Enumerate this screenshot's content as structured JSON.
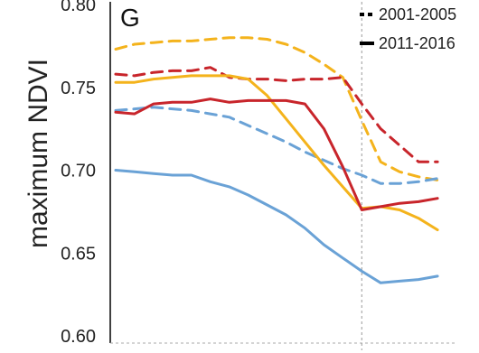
{
  "chart_data": {
    "type": "line",
    "panel_label": "G",
    "ylabel": "maximum NDVI",
    "xlabel": "",
    "ylim": [
      0.6,
      0.8
    ],
    "yticks": [
      "0.60",
      "0.65",
      "0.70",
      "0.75",
      "0.80"
    ],
    "ytick_values": [
      0.6,
      0.65,
      0.7,
      0.75,
      0.8
    ],
    "xlim": [
      0,
      18
    ],
    "vertical_marker_x": 13,
    "grid": false,
    "legend_position": "top-right",
    "legend": [
      {
        "label": "2001-2005",
        "style": "dashed"
      },
      {
        "label": "2011-2016",
        "style": "solid"
      }
    ],
    "x": [
      0,
      1,
      2,
      3,
      4,
      5,
      6,
      7,
      8,
      9,
      10,
      11,
      12,
      13,
      14,
      15,
      16,
      17
    ],
    "series": [
      {
        "color": "#f4b31c",
        "style": "dashed",
        "values": [
          0.773,
          0.776,
          0.777,
          0.778,
          0.778,
          0.779,
          0.78,
          0.78,
          0.779,
          0.776,
          0.771,
          0.764,
          0.756,
          0.73,
          0.705,
          0.699,
          0.696,
          0.694
        ]
      },
      {
        "color": "#c8252b",
        "style": "dashed",
        "values": [
          0.758,
          0.757,
          0.759,
          0.76,
          0.76,
          0.762,
          0.756,
          0.755,
          0.755,
          0.754,
          0.755,
          0.755,
          0.756,
          0.74,
          0.725,
          0.715,
          0.705,
          0.705
        ]
      },
      {
        "color": "#6aa2d6",
        "style": "dashed",
        "values": [
          0.736,
          0.737,
          0.738,
          0.737,
          0.736,
          0.734,
          0.732,
          0.727,
          0.722,
          0.717,
          0.711,
          0.706,
          0.701,
          0.697,
          0.692,
          0.692,
          0.693,
          0.695
        ]
      },
      {
        "color": "#f4b31c",
        "style": "solid",
        "values": [
          0.753,
          0.753,
          0.755,
          0.756,
          0.757,
          0.757,
          0.757,
          0.755,
          0.745,
          0.731,
          0.717,
          0.703,
          0.69,
          0.677,
          0.678,
          0.676,
          0.671,
          0.664
        ]
      },
      {
        "color": "#c8252b",
        "style": "solid",
        "values": [
          0.735,
          0.734,
          0.74,
          0.741,
          0.741,
          0.743,
          0.741,
          0.742,
          0.742,
          0.742,
          0.74,
          0.725,
          0.702,
          0.676,
          0.678,
          0.68,
          0.681,
          0.683
        ]
      },
      {
        "color": "#6aa2d6",
        "style": "solid",
        "values": [
          0.7,
          0.699,
          0.698,
          0.697,
          0.697,
          0.693,
          0.69,
          0.685,
          0.679,
          0.673,
          0.665,
          0.655,
          0.647,
          0.639,
          0.632,
          0.633,
          0.634,
          0.636
        ]
      }
    ]
  }
}
